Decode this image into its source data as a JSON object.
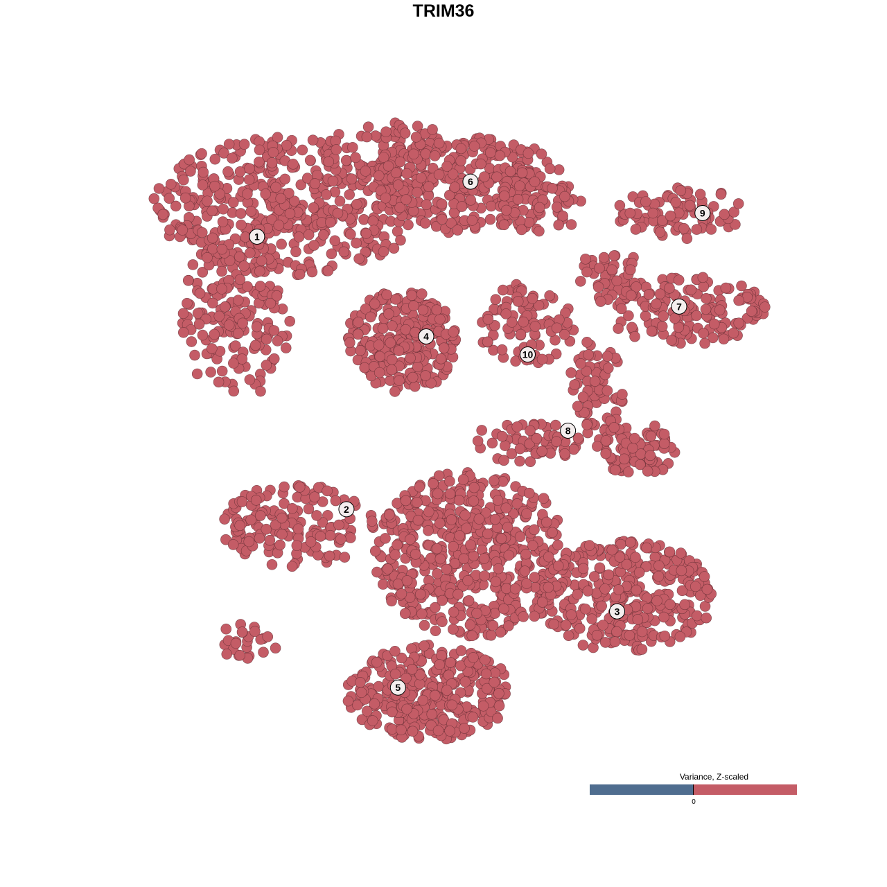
{
  "chart_data": {
    "type": "scatter",
    "title": "TRIM36",
    "xlabel": "",
    "ylabel": "",
    "axes_visible": false,
    "grid": false,
    "xlim": [
      -40,
      40
    ],
    "ylim": [
      -40,
      40
    ],
    "point_color": "#c45c66",
    "point_stroke": "#5a2a2f",
    "label_fill": "#f4eeee",
    "clusters": [
      {
        "id": "1",
        "label_pos": [
          -25.3,
          26.2
        ],
        "components": [
          {
            "center": [
              -21.1,
              30.1
            ],
            "spread": [
              17.2,
              8.8
            ],
            "n": 420
          },
          {
            "center": [
              -28.0,
              15.9
            ],
            "spread": [
              6.9,
              10.6
            ],
            "n": 170
          },
          {
            "center": [
              -9.1,
              36.3
            ],
            "spread": [
              9.5,
              4.4
            ],
            "n": 110
          }
        ]
      },
      {
        "id": "2",
        "label_pos": [
          -14.2,
          -8.5
        ],
        "components": [
          {
            "center": [
              -20.3,
              -10.6
            ],
            "spread": [
              9.5,
              5.3
            ],
            "n": 150
          },
          {
            "center": [
              -27.2,
              -25.7
            ],
            "spread": [
              4.3,
              2.7
            ],
            "n": 25
          }
        ]
      },
      {
        "id": "3",
        "label_pos": [
          19.4,
          -21.5
        ],
        "components": [
          {
            "center": [
              20.3,
              -19.5
            ],
            "spread": [
              11.2,
              7.1
            ],
            "n": 320
          }
        ]
      },
      {
        "id": "4",
        "label_pos": [
          -4.3,
          13.5
        ],
        "components": [
          {
            "center": [
              -7.3,
              12.8
            ],
            "spread": [
              6.9,
              6.6
            ],
            "n": 260
          }
        ]
      },
      {
        "id": "5",
        "label_pos": [
          -7.8,
          -31.2
        ],
        "components": [
          {
            "center": [
              -3.9,
              -31.9
            ],
            "spread": [
              10.3,
              6.2
            ],
            "n": 330
          },
          {
            "center": [
              1.3,
              -14.2
            ],
            "spread": [
              12.1,
              10.6
            ],
            "n": 520
          }
        ]
      },
      {
        "id": "6",
        "label_pos": [
          1.2,
          33.2
        ],
        "components": [
          {
            "center": [
              1.3,
              32.7
            ],
            "spread": [
              12.1,
              6.2
            ],
            "n": 260
          },
          {
            "center": [
              9.9,
              30.1
            ],
            "spread": [
              5.2,
              3.5
            ],
            "n": 50
          }
        ]
      },
      {
        "id": "7",
        "label_pos": [
          27.1,
          17.3
        ],
        "components": [
          {
            "center": [
              28.0,
              16.8
            ],
            "spread": [
              10.3,
              4.4
            ],
            "n": 150
          },
          {
            "center": [
              18.5,
              21.2
            ],
            "spread": [
              4.3,
              3.5
            ],
            "n": 50
          }
        ]
      },
      {
        "id": "8",
        "label_pos": [
          13.3,
          1.5
        ],
        "components": [
          {
            "center": [
              16.8,
              7.1
            ],
            "spread": [
              3.4,
              6.2
            ],
            "n": 70
          },
          {
            "center": [
              22.0,
              -0.9
            ],
            "spread": [
              5.2,
              3.5
            ],
            "n": 80
          },
          {
            "center": [
              8.2,
              0.0
            ],
            "spread": [
              6.9,
              2.7
            ],
            "n": 60
          }
        ]
      },
      {
        "id": "9",
        "label_pos": [
          30.0,
          29.2
        ],
        "components": [
          {
            "center": [
              27.2,
              29.2
            ],
            "spread": [
              7.8,
              3.5
            ],
            "n": 80
          }
        ]
      },
      {
        "id": "10",
        "label_pos": [
          8.3,
          11.2
        ],
        "components": [
          {
            "center": [
              8.2,
              15.0
            ],
            "spread": [
              6.0,
              5.3
            ],
            "n": 90
          }
        ]
      }
    ],
    "legend": {
      "title": "Variance, Z-scaled",
      "tick_label": "0",
      "low_color": "#4f6d8f",
      "high_color": "#c45c66",
      "placement": "bottom-right"
    }
  }
}
